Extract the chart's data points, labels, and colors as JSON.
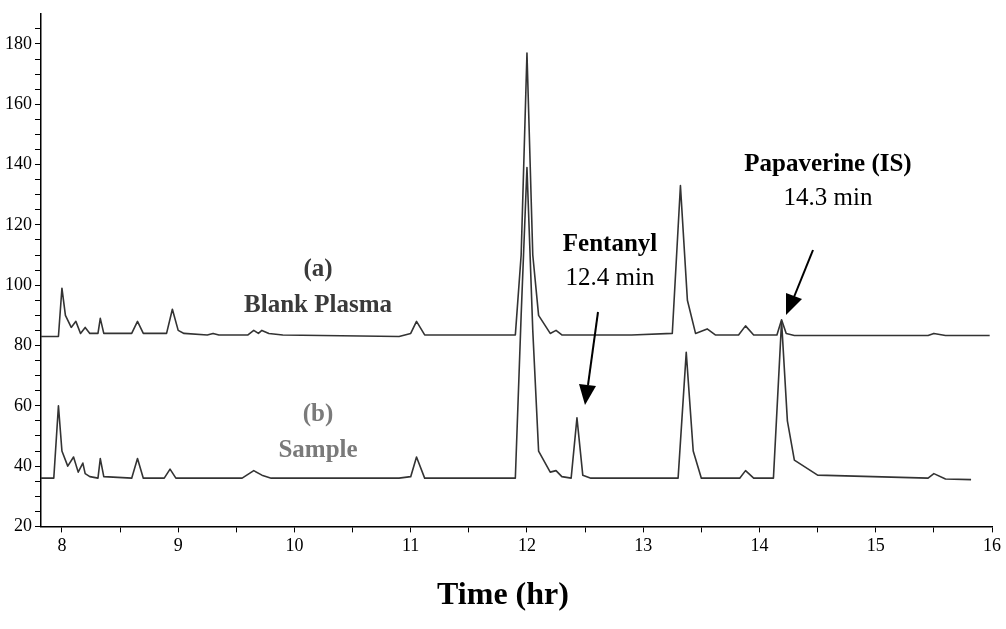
{
  "chart_data": {
    "type": "line",
    "xlabel": "Time (hr)",
    "xlim": [
      7.82,
      16
    ],
    "xticks": [
      8,
      {
        "value": 8.5,
        "label": null
      },
      9,
      {
        "value": 9.5,
        "label": null
      },
      10,
      {
        "value": 10.5,
        "label": null
      },
      11,
      {
        "value": 11.5,
        "label": null
      },
      12,
      {
        "value": 12.5,
        "label": null
      },
      13,
      {
        "value": 13.5,
        "label": null
      },
      14,
      {
        "value": 14.5,
        "label": null
      },
      15,
      {
        "value": 15.5,
        "label": null
      },
      16
    ],
    "ylim": [
      20,
      190
    ],
    "yticks": [
      20,
      {
        "value": 25,
        "label": null
      },
      {
        "value": 30,
        "label": null
      },
      {
        "value": 35,
        "label": null
      },
      40,
      {
        "value": 45,
        "label": null
      },
      {
        "value": 50,
        "label": null
      },
      {
        "value": 55,
        "label": null
      },
      60,
      {
        "value": 65,
        "label": null
      },
      {
        "value": 70,
        "label": null
      },
      {
        "value": 75,
        "label": null
      },
      80,
      {
        "value": 85,
        "label": null
      },
      {
        "value": 90,
        "label": null
      },
      {
        "value": 95,
        "label": null
      },
      100,
      {
        "value": 105,
        "label": null
      },
      {
        "value": 110,
        "label": null
      },
      {
        "value": 115,
        "label": null
      },
      120,
      {
        "value": 125,
        "label": null
      },
      {
        "value": 130,
        "label": null
      },
      {
        "value": 135,
        "label": null
      },
      140,
      {
        "value": 145,
        "label": null
      },
      {
        "value": 150,
        "label": null
      },
      {
        "value": 155,
        "label": null
      },
      160,
      {
        "value": 165,
        "label": null
      },
      {
        "value": 170,
        "label": null
      },
      {
        "value": 175,
        "label": null
      },
      180,
      {
        "value": 185,
        "label": null
      }
    ],
    "grid": false,
    "legend": false,
    "marker": "none",
    "line_style": "solid",
    "series": [
      {
        "name": "(a)\nBlank Plasma",
        "color": "#333333",
        "x": [
          7.82,
          7.97,
          8.0,
          8.03,
          8.08,
          8.12,
          8.16,
          8.2,
          8.24,
          8.31,
          8.33,
          8.36,
          8.6,
          8.65,
          8.7,
          8.9,
          8.95,
          9.0,
          9.05,
          9.25,
          9.3,
          9.35,
          9.6,
          9.65,
          9.69,
          9.72,
          9.78,
          9.9,
          10.9,
          11.0,
          11.05,
          11.12,
          11.4,
          11.9,
          11.95,
          12.0,
          12.05,
          12.1,
          12.2,
          12.25,
          12.3,
          12.9,
          13.25,
          13.32,
          13.38,
          13.45,
          13.55,
          13.62,
          13.82,
          13.88,
          13.95,
          14.15,
          14.19,
          14.23,
          14.3,
          15.45,
          15.5,
          15.6,
          15.98
        ],
        "values": [
          83,
          83,
          99,
          90,
          86,
          88,
          84,
          86,
          84,
          84,
          89,
          84,
          84,
          88,
          84,
          84,
          92,
          85,
          84,
          83.5,
          84,
          83.5,
          83.5,
          85,
          84,
          85,
          84,
          83.5,
          83,
          84,
          88,
          83.5,
          83.5,
          83.5,
          110,
          177,
          110,
          90,
          84,
          85,
          83.5,
          83.5,
          84,
          133,
          95,
          84,
          85.5,
          83.5,
          83.5,
          86.5,
          83.5,
          83.5,
          88.5,
          84,
          83.3,
          83.3,
          84,
          83.3,
          83.3
        ]
      },
      {
        "name": "(b)\nSample",
        "color": "#333333",
        "x": [
          7.82,
          7.93,
          7.97,
          8.0,
          8.05,
          8.1,
          8.14,
          8.18,
          8.2,
          8.24,
          8.31,
          8.33,
          8.36,
          8.6,
          8.65,
          8.7,
          8.88,
          8.93,
          8.98,
          9.55,
          9.65,
          9.72,
          9.8,
          10.9,
          11.0,
          11.05,
          11.12,
          11.9,
          11.95,
          12.0,
          12.05,
          12.1,
          12.2,
          12.25,
          12.3,
          12.38,
          12.43,
          12.48,
          12.55,
          13.3,
          13.37,
          13.43,
          13.5,
          13.83,
          13.88,
          13.95,
          14.12,
          14.19,
          14.24,
          14.3,
          14.5,
          15.45,
          15.5,
          15.6,
          15.82
        ],
        "values": [
          36,
          36,
          60,
          45,
          40,
          43,
          38,
          41,
          37.5,
          36.5,
          36,
          42.5,
          36.5,
          36,
          42.5,
          36,
          36,
          39,
          36,
          36,
          38.5,
          37,
          36,
          36,
          36.5,
          43,
          36,
          36,
          90,
          139,
          85,
          45,
          38,
          38.5,
          36.5,
          36,
          56,
          37,
          36,
          36,
          77.7,
          45,
          36,
          36,
          38.5,
          36,
          36,
          88,
          55,
          42,
          37,
          36,
          37.5,
          35.7,
          35.5
        ]
      }
    ],
    "annotations": [
      "Fentanyl\n12.4 min",
      "Papaverine (IS)\n14.3 min"
    ]
  }
}
